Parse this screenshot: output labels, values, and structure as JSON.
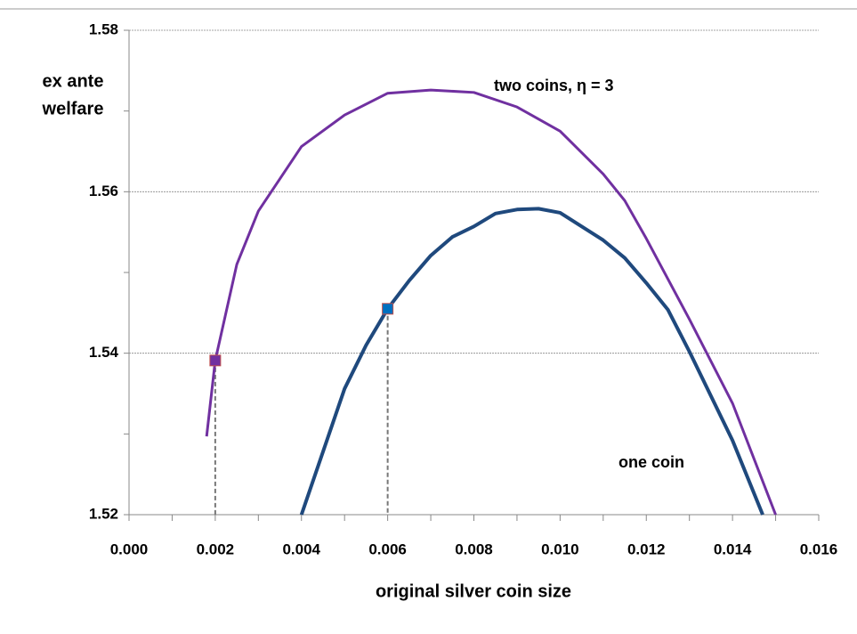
{
  "chart_data": {
    "type": "line",
    "xlabel": "original silver coin size",
    "ylabel": [
      "ex ante",
      "welfare"
    ],
    "xlim": [
      0,
      0.016
    ],
    "ylim": [
      1.52,
      1.58
    ],
    "xticks": [
      {
        "value": 0,
        "label": "0.000"
      },
      {
        "value": 0.002,
        "label": "0.002"
      },
      {
        "value": 0.004,
        "label": "0.004"
      },
      {
        "value": 0.006,
        "label": "0.006"
      },
      {
        "value": 0.008,
        "label": "0.008"
      },
      {
        "value": 0.01,
        "label": "0.010"
      },
      {
        "value": 0.012,
        "label": "0.012"
      },
      {
        "value": 0.014,
        "label": "0.014"
      },
      {
        "value": 0.016,
        "label": "0.016"
      }
    ],
    "x_minor_ticks": [
      0.001,
      0.003,
      0.005,
      0.007,
      0.009,
      0.011,
      0.013,
      0.015
    ],
    "yticks": [
      1.52,
      1.54,
      1.56,
      1.58
    ],
    "y_minor_ticks": [
      1.53,
      1.55,
      1.57
    ],
    "grid": true,
    "series": [
      {
        "name": "two coins, η = 3",
        "color": "#7030a0",
        "x": [
          0.0018,
          0.002,
          0.0025,
          0.003,
          0.004,
          0.005,
          0.006,
          0.007,
          0.008,
          0.009,
          0.01,
          0.011,
          0.0115,
          0.012,
          0.013,
          0.014,
          0.015
        ],
        "values": [
          1.5297,
          1.5391,
          1.551,
          1.5576,
          1.5656,
          1.5695,
          1.5722,
          1.5726,
          1.5723,
          1.5705,
          1.5675,
          1.5622,
          1.5589,
          1.5542,
          1.5442,
          1.5338,
          1.52
        ]
      },
      {
        "name": "one coin",
        "color": "#1f497d",
        "x": [
          0.004,
          0.005,
          0.0055,
          0.006,
          0.0065,
          0.007,
          0.0075,
          0.008,
          0.0085,
          0.009,
          0.0095,
          0.01,
          0.011,
          0.0115,
          0.012,
          0.0125,
          0.013,
          0.014,
          0.0147
        ],
        "values": [
          1.52,
          1.5356,
          1.541,
          1.5455,
          1.549,
          1.5521,
          1.5544,
          1.5557,
          1.5573,
          1.5578,
          1.5579,
          1.5574,
          1.554,
          1.5518,
          1.5487,
          1.5454,
          1.5402,
          1.5292,
          1.52
        ]
      }
    ],
    "markers": [
      {
        "x": 0.002,
        "y": 1.5391,
        "color": "#7030a0"
      },
      {
        "x": 0.006,
        "y": 1.5455,
        "color": "#0070c0"
      }
    ]
  }
}
